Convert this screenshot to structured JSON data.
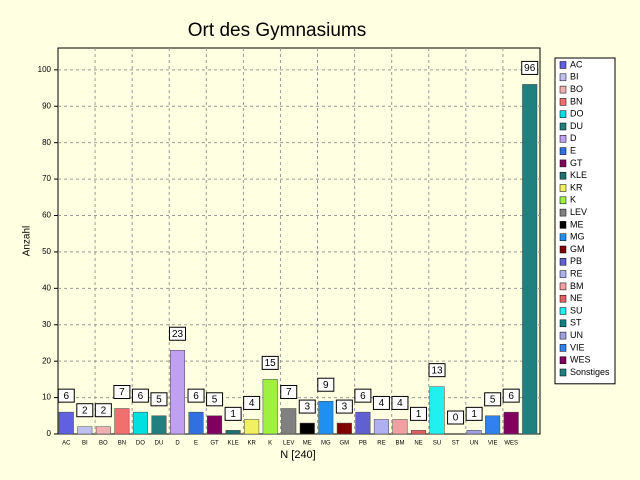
{
  "chart_data": {
    "type": "bar",
    "title": "Ort des Gymnasiums",
    "xlabel": "N [240]",
    "ylabel": "Anzahl",
    "categories": [
      "AC",
      "BI",
      "BO",
      "BN",
      "DO",
      "DU",
      "D",
      "E",
      "GT",
      "KLE",
      "KR",
      "K",
      "LEV",
      "ME",
      "MG",
      "GM",
      "PB",
      "RE",
      "BM",
      "NE",
      "SU",
      "ST",
      "UN",
      "VIE",
      "WES",
      null
    ],
    "legend": [
      "AC",
      "BI",
      "BO",
      "BN",
      "DO",
      "DU",
      "D",
      "E",
      "GT",
      "KLE",
      "KR",
      "K",
      "LEV",
      "ME",
      "MG",
      "GM",
      "PB",
      "RE",
      "BM",
      "NE",
      "SU",
      "ST",
      "UN",
      "VIE",
      "WES",
      "Sonstiges"
    ],
    "values": [
      6,
      2,
      2,
      7,
      6,
      5,
      23,
      6,
      5,
      1,
      4,
      15,
      7,
      3,
      9,
      3,
      6,
      4,
      4,
      1,
      13,
      0,
      1,
      5,
      6,
      96
    ],
    "colors": [
      "#6060e0",
      "#c0c0f0",
      "#f0b0b0",
      "#f07070",
      "#00e0e0",
      "#208080",
      "#c0a0f0",
      "#3070e0",
      "#800060",
      "#207070",
      "#f0f060",
      "#a0f040",
      "#808080",
      "#000000",
      "#2090f0",
      "#800000",
      "#6060d0",
      "#b0b0f0",
      "#f0a0a0",
      "#e06060",
      "#20f0f0",
      "#108080",
      "#a0a0e0",
      "#3080f0",
      "#800060",
      "#208080"
    ],
    "ylim": [
      0,
      106
    ],
    "yticks": [
      0,
      10,
      20,
      30,
      40,
      50,
      60,
      70,
      80,
      90,
      100
    ],
    "grid": true,
    "legend_position": "right"
  }
}
